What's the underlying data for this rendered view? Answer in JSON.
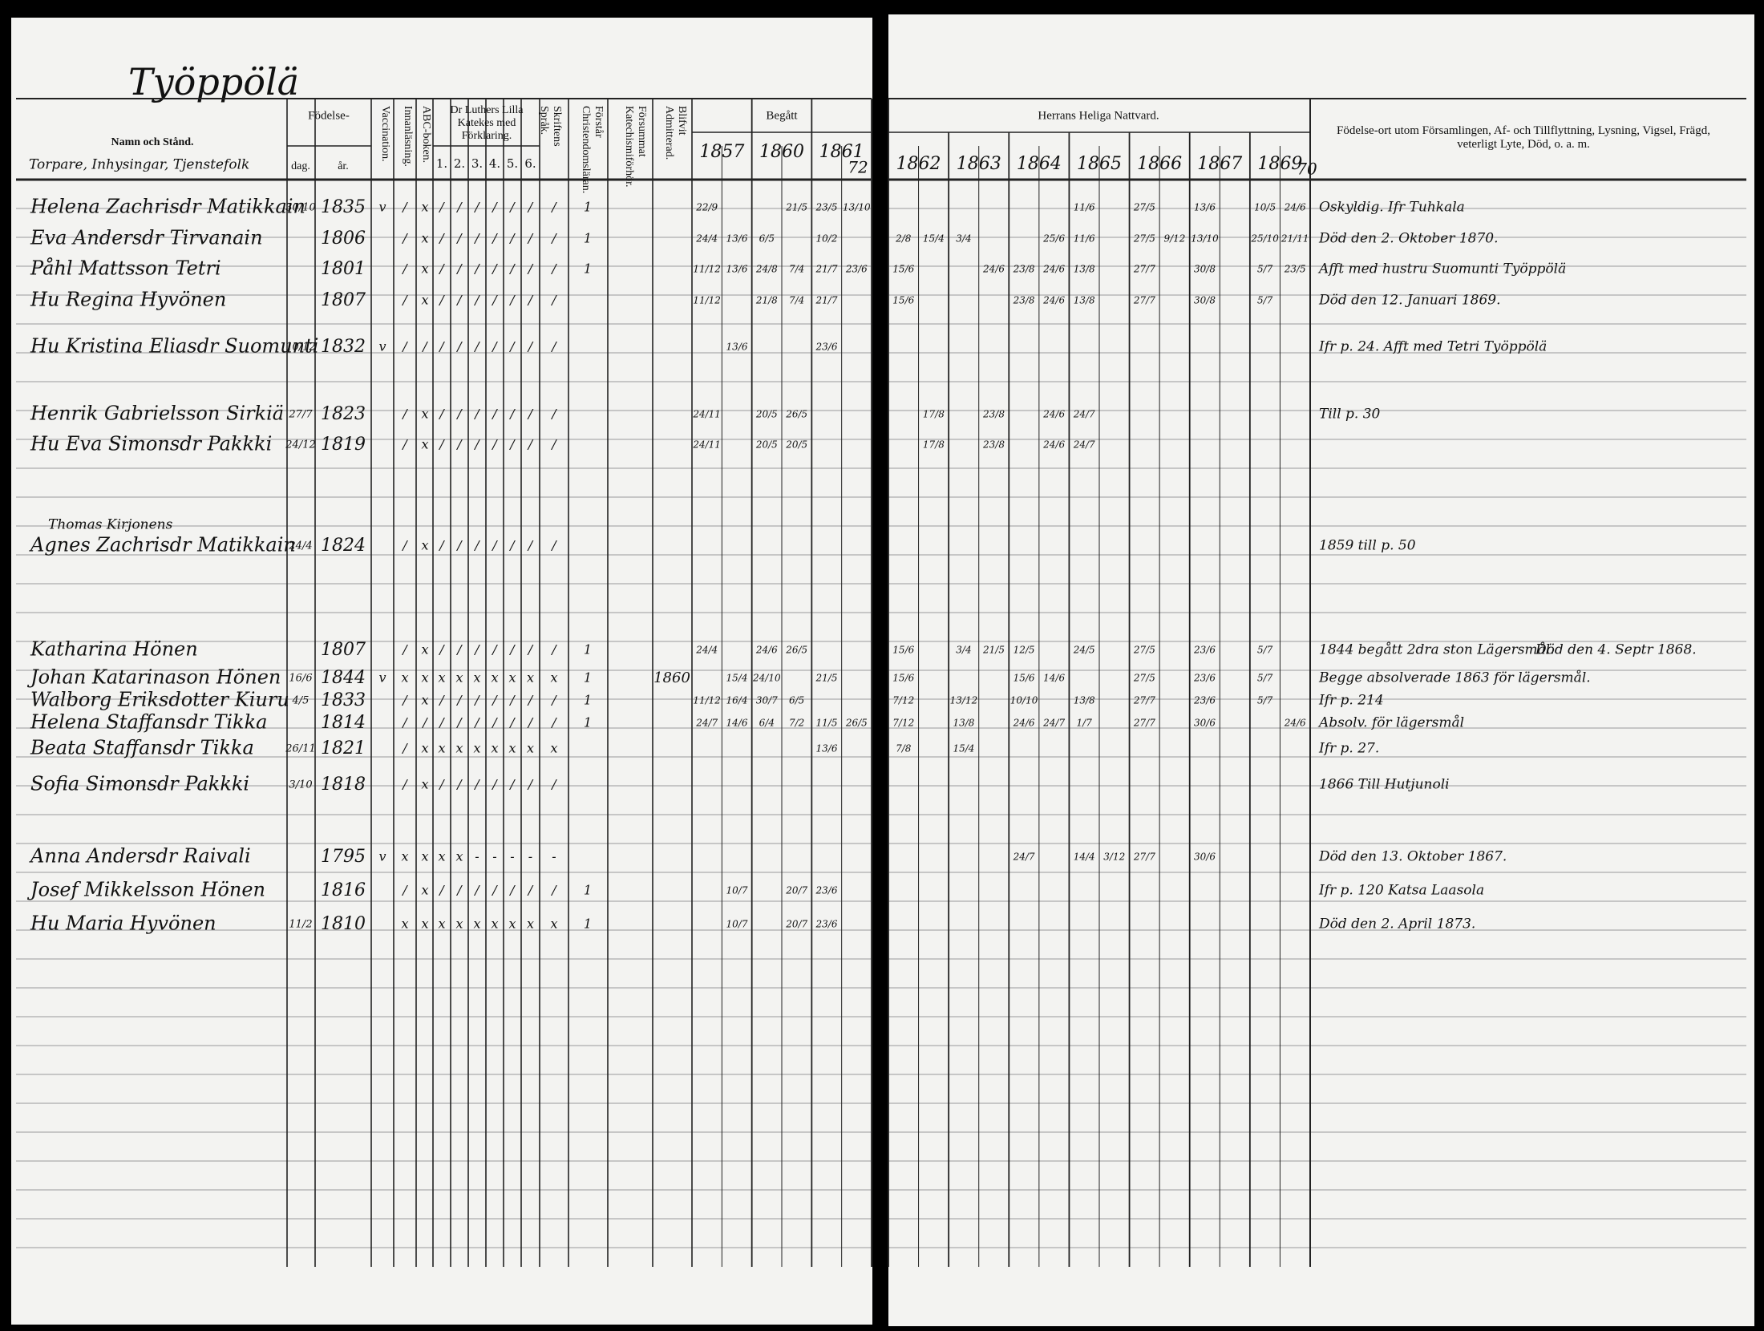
{
  "left_page": {
    "title": "Työppölä",
    "headers": {
      "name": "Namn och Stånd.",
      "name_note": "Torpare, Inhysingar, Tjenstefolk",
      "birth": "Födelse-",
      "day": "dag.",
      "year": "år.",
      "vaccination": "Vaccination.",
      "reading": "Innanläsning.",
      "abc": "ABC-boken.",
      "catechism": "Dr Luthers Lilla Katekes med Förklaring.",
      "catechism_parts": [
        "1.",
        "2.",
        "3.",
        "4.",
        "5.",
        "6."
      ],
      "scripture": "Skriftens Språk.",
      "christianity": "Förstår Christendomsläran.",
      "hearing": "Försummat Katechismiförhör.",
      "admitted": "Blifvit Admitterad.",
      "communion": "Begått",
      "communion_years": [
        "1857",
        "1860",
        "1861"
      ],
      "communion_year_extra": "72"
    }
  },
  "right_page": {
    "headers": {
      "communion": "Herrans Heliga Nattvard.",
      "communion_years": [
        "1862",
        "1863",
        "1864",
        "1865",
        "1866",
        "1867",
        "1869"
      ],
      "communion_year_extra": "70",
      "notes": "Födelse-ort utom Församlingen, Af- och Tillflyttning, Lysning, Vigsel, Frägd, veterligt Lyte, Död, o. a. m."
    }
  },
  "rows": [
    {
      "name": "Helena Zachrisdr Matikkain",
      "day": "30/10",
      "year": "1835",
      "marks": [
        "v",
        "/",
        "x",
        "/",
        "/",
        "/",
        "/",
        "/",
        "/",
        "/",
        "1"
      ],
      "communion": [
        "22/9",
        null,
        null,
        "21/5",
        "23/5",
        "13/10",
        null,
        null,
        null,
        null,
        null,
        null,
        "11/6",
        null,
        "27/5",
        null,
        "13/6",
        null,
        "10/5",
        "24/6"
      ],
      "notes": [
        "Oskyldig. Ifr Tuhkala"
      ]
    },
    {
      "name": "Eva Andersdr Tirvanain",
      "year": "1806",
      "marks": [
        null,
        "/",
        "x",
        "/",
        "/",
        "/",
        "/",
        "/",
        "/",
        "/",
        "1"
      ],
      "communion": [
        "24/4",
        "13/6",
        "6/5",
        null,
        "10/2",
        null,
        "2/8",
        "15/4",
        "3/4",
        null,
        null,
        "25/6",
        "11/6",
        null,
        "27/5",
        "9/12",
        "13/10",
        null,
        "25/10",
        "21/11"
      ],
      "notes": [
        "Död den 2. Oktober 1870."
      ]
    },
    {
      "name": "Påhl Mattsson Tetri",
      "year": "1801",
      "marks": [
        null,
        "/",
        "x",
        "/",
        "/",
        "/",
        "/",
        "/",
        "/",
        "/",
        "1"
      ],
      "communion": [
        "11/12",
        "13/6",
        "24/8",
        "7/4",
        "21/7",
        "23/6",
        "15/6",
        null,
        null,
        "24/6",
        "23/8",
        "24/6",
        "13/8",
        null,
        "27/7",
        null,
        "30/8",
        null,
        "5/7",
        "23/5"
      ],
      "notes": [
        "Afft med hustru Suomunti Työppölä"
      ]
    },
    {
      "name": "Hu Regina Hyvönen",
      "year": "1807",
      "marks": [
        null,
        "/",
        "x",
        "/",
        "/",
        "/",
        "/",
        "/",
        "/",
        "/",
        null
      ],
      "communion": [
        "11/12",
        null,
        "21/8",
        "7/4",
        "21/7",
        null,
        "15/6",
        null,
        null,
        null,
        "23/8",
        "24/6",
        "13/8",
        null,
        "27/7",
        null,
        "30/8",
        null,
        "5/7",
        null
      ],
      "notes": [
        "Död den 12. Januari 1869."
      ]
    },
    {
      "name": "Hu Kristina Eliasdr Suomunti",
      "day": "10/12",
      "year": "1832",
      "marks": [
        "v",
        "/",
        "/",
        "/",
        "/",
        "/",
        "/",
        "/",
        "/",
        "/",
        null
      ],
      "communion": [
        null,
        "13/6",
        null,
        null,
        "23/6",
        null,
        null,
        null,
        null,
        null,
        null,
        null,
        null,
        null,
        null,
        null,
        null,
        null,
        null,
        null
      ],
      "notes": [
        "Ifr p. 24. Afft med Tetri Työppölä"
      ]
    },
    {
      "name": "Henrik Gabrielsson Sirkiä",
      "day": "27/7",
      "year": "1823",
      "marks": [
        null,
        "/",
        "x",
        "/",
        "/",
        "/",
        "/",
        "/",
        "/",
        "/",
        null
      ],
      "communion": [
        "24/11",
        null,
        "20/5",
        "26/5",
        null,
        null,
        null,
        "17/8",
        null,
        "23/8",
        null,
        "24/6",
        "24/7",
        null,
        null,
        null,
        null,
        null,
        null,
        null
      ],
      "notes": [
        "Till p. 30"
      ]
    },
    {
      "name": "Hu Eva Simonsdr Pakkki",
      "day": "24/12",
      "year": "1819",
      "marks": [
        null,
        "/",
        "x",
        "/",
        "/",
        "/",
        "/",
        "/",
        "/",
        "/",
        null
      ],
      "communion": [
        "24/11",
        null,
        "20/5",
        "20/5",
        null,
        null,
        null,
        "17/8",
        null,
        "23/8",
        null,
        "24/6",
        "24/7",
        null,
        null,
        null,
        null,
        null,
        null,
        null
      ],
      "notes": []
    },
    {
      "name": "Agnes Zachrisdr Matikkain",
      "note_above": "Thomas Kirjonens",
      "day": "24/4",
      "year": "1824",
      "marks": [
        null,
        "/",
        "x",
        "/",
        "/",
        "/",
        "/",
        "/",
        "/",
        "/",
        null
      ],
      "communion": [
        null,
        null,
        null,
        null,
        null,
        null,
        null,
        null,
        null,
        null,
        null,
        null,
        null,
        null,
        null,
        null,
        null,
        null,
        null,
        null
      ],
      "notes": [
        "1859 till p. 50"
      ]
    },
    {
      "name": "Katharina Hönen",
      "year": "1807",
      "marks": [
        null,
        "/",
        "x",
        "/",
        "/",
        "/",
        "/",
        "/",
        "/",
        "/",
        "1"
      ],
      "communion": [
        "24/4",
        null,
        "24/6",
        "26/5",
        null,
        null,
        "15/6",
        null,
        "3/4",
        "21/5",
        "12/5",
        null,
        "24/5",
        null,
        "27/5",
        null,
        "23/6",
        null,
        "5/7",
        null
      ],
      "notes": [
        "1844 begått 2dra ston Lägersmål.",
        "Död den 4. Septr 1868."
      ]
    },
    {
      "name": "Johan Katarinason Hönen",
      "day": "16/6",
      "year": "1844",
      "admitted": "1860",
      "marks": [
        "v",
        "x",
        "x",
        "x",
        "x",
        "x",
        "x",
        "x",
        "x",
        "x",
        "1"
      ],
      "communion": [
        null,
        "15/4",
        "24/10",
        null,
        "21/5",
        null,
        "15/6",
        null,
        null,
        null,
        "15/6",
        "14/6",
        null,
        null,
        "27/5",
        null,
        "23/6",
        null,
        "5/7",
        null
      ],
      "notes": [
        "Begge absolverade 1863 för lägersmål."
      ]
    },
    {
      "name": "Walborg Eriksdotter Kiuru",
      "day": "4/5",
      "year": "1833",
      "marks": [
        null,
        "/",
        "x",
        "/",
        "/",
        "/",
        "/",
        "/",
        "/",
        "/",
        "1"
      ],
      "communion": [
        "11/12",
        "16/4",
        "30/7",
        "6/5",
        null,
        null,
        "7/12",
        null,
        "13/12",
        null,
        "10/10",
        null,
        "13/8",
        null,
        "27/7",
        null,
        "23/6",
        null,
        "5/7",
        null
      ],
      "notes": [
        "Ifr p. 214"
      ]
    },
    {
      "name": "Helena Staffansdr Tikka",
      "year": "1814",
      "marks": [
        null,
        "/",
        "/",
        "/",
        "/",
        "/",
        "/",
        "/",
        "/",
        "/",
        "1"
      ],
      "communion": [
        "24/7",
        "14/6",
        "6/4",
        "7/2",
        "11/5",
        "26/5",
        "7/12",
        null,
        "13/8",
        null,
        "24/6",
        "24/7",
        "1/7",
        null,
        "27/7",
        null,
        "30/6",
        null,
        null,
        "24/6"
      ],
      "notes": [
        "Absolv. för lägersmål"
      ]
    },
    {
      "name": "Beata Staffansdr Tikka",
      "day": "26/11",
      "year": "1821",
      "marks": [
        null,
        "/",
        "x",
        "x",
        "x",
        "x",
        "x",
        "x",
        "x",
        "x",
        null
      ],
      "communion": [
        null,
        null,
        null,
        null,
        "13/6",
        null,
        "7/8",
        null,
        "15/4",
        null,
        null,
        null,
        null,
        null,
        null,
        null,
        null,
        null,
        null,
        null
      ],
      "notes": [
        "Ifr p. 27."
      ]
    },
    {
      "name": "Sofia Simonsdr Pakkki",
      "day": "3/10",
      "year": "1818",
      "marks": [
        null,
        "/",
        "x",
        "/",
        "/",
        "/",
        "/",
        "/",
        "/",
        "/",
        null
      ],
      "communion": [
        null,
        null,
        null,
        null,
        null,
        null,
        null,
        null,
        null,
        null,
        null,
        null,
        null,
        null,
        null,
        null,
        null,
        null,
        null,
        null
      ],
      "notes": [
        "1866 Till Hutjunoli"
      ]
    },
    {
      "name": "Anna Andersdr Raivali",
      "year": "1795",
      "marks": [
        "v",
        "x",
        "x",
        "x",
        "x",
        "-",
        "-",
        "-",
        "-",
        "-",
        null
      ],
      "communion": [
        null,
        null,
        null,
        null,
        null,
        null,
        null,
        null,
        null,
        null,
        "24/7",
        null,
        "14/4",
        "3/12",
        "27/7",
        null,
        "30/6",
        null,
        null,
        null
      ],
      "notes": [
        "Död den 13. Oktober 1867."
      ]
    },
    {
      "name": "Josef Mikkelsson Hönen",
      "year": "1816",
      "marks": [
        null,
        "/",
        "x",
        "/",
        "/",
        "/",
        "/",
        "/",
        "/",
        "/",
        "1"
      ],
      "communion": [
        null,
        "10/7",
        null,
        "20/7",
        "23/6",
        null,
        null,
        null,
        null,
        null,
        null,
        null,
        null,
        null,
        null,
        null,
        null,
        null,
        null,
        null
      ],
      "notes": [
        "Ifr p. 120 Katsa Laasola"
      ]
    },
    {
      "name": "Hu Maria Hyvönen",
      "day": "11/2",
      "year": "1810",
      "marks": [
        null,
        "x",
        "x",
        "x",
        "x",
        "x",
        "x",
        "x",
        "x",
        "x",
        "1"
      ],
      "communion": [
        null,
        "10/7",
        null,
        "20/7",
        "23/6",
        null,
        null,
        null,
        null,
        null,
        null,
        null,
        null,
        null,
        null,
        null,
        null,
        null,
        null,
        null
      ],
      "notes": [
        "Död den 2. April 1873."
      ]
    }
  ]
}
